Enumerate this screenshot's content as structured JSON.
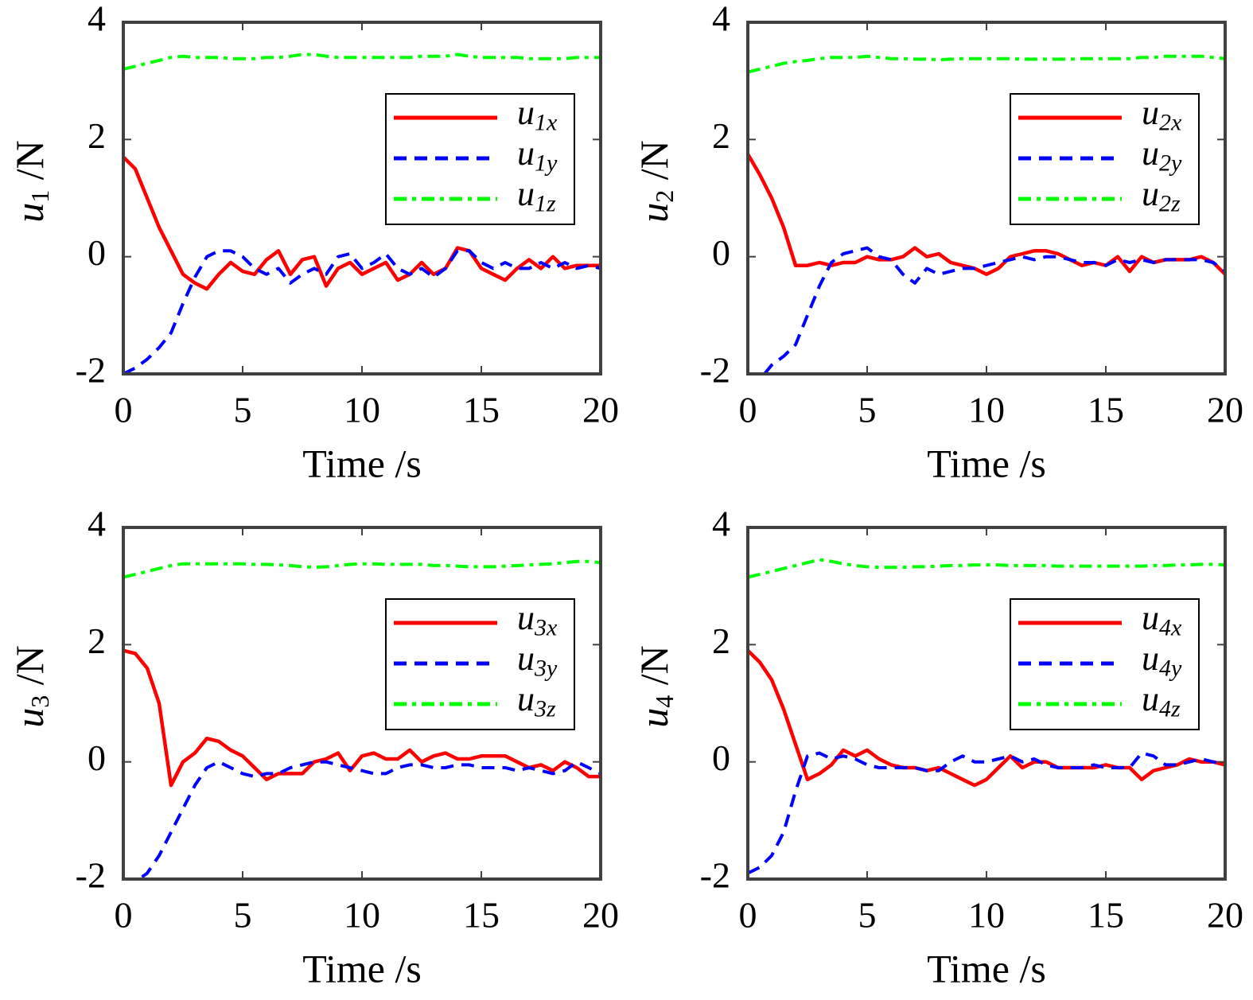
{
  "chart_data": [
    {
      "type": "line",
      "xlabel": "Time /s",
      "ylabel": "u1 /N",
      "x": [
        0,
        0.5,
        1,
        1.5,
        2,
        2.5,
        3,
        3.5,
        4,
        4.5,
        5,
        5.5,
        6,
        6.5,
        7,
        7.5,
        8,
        8.5,
        9,
        9.5,
        10,
        10.5,
        11,
        11.5,
        12,
        12.5,
        13,
        13.5,
        14,
        14.5,
        15,
        15.5,
        16,
        16.5,
        17,
        17.5,
        18,
        18.5,
        19,
        19.5,
        20
      ],
      "series": [
        {
          "name": "u1x",
          "color": "#ff0000",
          "style": "solid",
          "values": [
            1.7,
            1.5,
            1.0,
            0.5,
            0.1,
            -0.3,
            -0.45,
            -0.55,
            -0.3,
            -0.1,
            -0.25,
            -0.3,
            -0.05,
            0.1,
            -0.3,
            -0.05,
            0.0,
            -0.5,
            -0.2,
            -0.1,
            -0.3,
            -0.2,
            -0.1,
            -0.4,
            -0.3,
            -0.1,
            -0.3,
            -0.2,
            0.15,
            0.1,
            -0.2,
            -0.3,
            -0.4,
            -0.2,
            -0.05,
            -0.2,
            0.0,
            -0.2,
            -0.15,
            -0.15,
            -0.15
          ]
        },
        {
          "name": "u1y",
          "color": "#0000ff",
          "style": "dashed",
          "values": [
            -2.0,
            -1.9,
            -1.75,
            -1.55,
            -1.3,
            -0.8,
            -0.35,
            0.0,
            0.1,
            0.1,
            0.0,
            -0.2,
            -0.3,
            -0.2,
            -0.45,
            -0.3,
            -0.2,
            -0.3,
            0.0,
            0.05,
            -0.2,
            -0.1,
            0.05,
            -0.2,
            -0.3,
            -0.2,
            -0.35,
            -0.2,
            0.1,
            0.1,
            -0.1,
            -0.2,
            -0.1,
            -0.2,
            -0.2,
            -0.1,
            -0.2,
            -0.1,
            -0.2,
            -0.15,
            -0.2
          ]
        },
        {
          "name": "u1z",
          "color": "#00ff00",
          "style": "dashdot",
          "values": [
            3.2,
            3.25,
            3.3,
            3.35,
            3.4,
            3.42,
            3.4,
            3.4,
            3.4,
            3.38,
            3.38,
            3.38,
            3.4,
            3.4,
            3.42,
            3.45,
            3.45,
            3.42,
            3.4,
            3.4,
            3.4,
            3.4,
            3.4,
            3.4,
            3.4,
            3.42,
            3.42,
            3.42,
            3.45,
            3.42,
            3.4,
            3.4,
            3.4,
            3.4,
            3.38,
            3.38,
            3.38,
            3.38,
            3.4,
            3.4,
            3.4
          ]
        }
      ],
      "xlim": [
        0,
        20
      ],
      "xticks": [
        0,
        5,
        10,
        15,
        20
      ],
      "ylim": [
        -2,
        4
      ],
      "yticks": [
        -2,
        0,
        2,
        4
      ],
      "legend": "upper right"
    },
    {
      "type": "line",
      "xlabel": "Time /s",
      "ylabel": "u2 /N",
      "x": [
        0,
        0.5,
        1,
        1.5,
        2,
        2.5,
        3,
        3.5,
        4,
        4.5,
        5,
        5.5,
        6,
        6.5,
        7,
        7.5,
        8,
        8.5,
        9,
        9.5,
        10,
        10.5,
        11,
        11.5,
        12,
        12.5,
        13,
        13.5,
        14,
        14.5,
        15,
        15.5,
        16,
        16.5,
        17,
        17.5,
        18,
        18.5,
        19,
        19.5,
        20
      ],
      "series": [
        {
          "name": "u2x",
          "color": "#ff0000",
          "style": "solid",
          "values": [
            1.75,
            1.4,
            1.0,
            0.5,
            -0.15,
            -0.15,
            -0.1,
            -0.15,
            -0.1,
            -0.1,
            0.0,
            -0.05,
            -0.05,
            0.0,
            0.15,
            0.0,
            0.05,
            -0.1,
            -0.15,
            -0.2,
            -0.3,
            -0.2,
            0.0,
            0.05,
            0.1,
            0.1,
            0.05,
            -0.05,
            -0.15,
            -0.1,
            -0.15,
            0.0,
            -0.25,
            0.0,
            -0.1,
            -0.05,
            -0.05,
            -0.05,
            0.0,
            -0.1,
            -0.3
          ]
        },
        {
          "name": "u2y",
          "color": "#0000ff",
          "style": "dashed",
          "values": [
            -2.0,
            -2.1,
            -1.85,
            -1.7,
            -1.5,
            -1.0,
            -0.5,
            -0.1,
            0.05,
            0.1,
            0.15,
            0.0,
            -0.05,
            -0.3,
            -0.45,
            -0.2,
            -0.3,
            -0.25,
            -0.2,
            -0.2,
            -0.15,
            -0.1,
            -0.05,
            0.0,
            -0.05,
            0.0,
            0.0,
            -0.05,
            -0.1,
            -0.1,
            -0.15,
            -0.05,
            -0.1,
            -0.05,
            -0.1,
            -0.05,
            -0.05,
            -0.05,
            -0.05,
            -0.1,
            -0.25
          ]
        },
        {
          "name": "u2z",
          "color": "#00ff00",
          "style": "dashdot",
          "values": [
            3.15,
            3.2,
            3.25,
            3.3,
            3.33,
            3.35,
            3.38,
            3.4,
            3.4,
            3.4,
            3.42,
            3.4,
            3.38,
            3.38,
            3.37,
            3.37,
            3.36,
            3.37,
            3.38,
            3.38,
            3.38,
            3.38,
            3.38,
            3.37,
            3.37,
            3.37,
            3.37,
            3.37,
            3.38,
            3.38,
            3.38,
            3.38,
            3.38,
            3.4,
            3.4,
            3.42,
            3.42,
            3.42,
            3.42,
            3.4,
            3.38
          ]
        }
      ],
      "xlim": [
        0,
        20
      ],
      "xticks": [
        0,
        5,
        10,
        15,
        20
      ],
      "ylim": [
        -2,
        4
      ],
      "yticks": [
        -2,
        0,
        2,
        4
      ],
      "legend": "upper right"
    },
    {
      "type": "line",
      "xlabel": "Time /s",
      "ylabel": "u3 /N",
      "x": [
        0,
        0.5,
        1,
        1.5,
        2,
        2.5,
        3,
        3.5,
        4,
        4.5,
        5,
        5.5,
        6,
        6.5,
        7,
        7.5,
        8,
        8.5,
        9,
        9.5,
        10,
        10.5,
        11,
        11.5,
        12,
        12.5,
        13,
        13.5,
        14,
        14.5,
        15,
        15.5,
        16,
        16.5,
        17,
        17.5,
        18,
        18.5,
        19,
        19.5,
        20
      ],
      "series": [
        {
          "name": "u3x",
          "color": "#ff0000",
          "style": "solid",
          "values": [
            1.9,
            1.85,
            1.6,
            1.0,
            -0.4,
            0.0,
            0.15,
            0.4,
            0.35,
            0.2,
            0.1,
            -0.1,
            -0.3,
            -0.2,
            -0.2,
            -0.2,
            0.0,
            0.05,
            0.15,
            -0.15,
            0.1,
            0.15,
            0.05,
            0.05,
            0.2,
            0.0,
            0.1,
            0.15,
            0.05,
            0.05,
            0.1,
            0.1,
            0.1,
            0.0,
            -0.1,
            -0.05,
            -0.15,
            0.0,
            -0.1,
            -0.25,
            -0.25
          ]
        },
        {
          "name": "u3y",
          "color": "#0000ff",
          "style": "dashed",
          "values": [
            -2.0,
            -2.05,
            -1.9,
            -1.6,
            -1.2,
            -0.8,
            -0.4,
            -0.1,
            0.0,
            -0.1,
            -0.2,
            -0.25,
            -0.2,
            -0.2,
            -0.1,
            -0.05,
            0.0,
            0.0,
            -0.05,
            -0.1,
            -0.15,
            -0.2,
            -0.2,
            -0.1,
            -0.05,
            -0.05,
            -0.1,
            -0.1,
            -0.05,
            -0.05,
            -0.1,
            -0.1,
            -0.1,
            -0.15,
            -0.1,
            -0.15,
            -0.2,
            -0.15,
            0.0,
            -0.1,
            -0.2
          ]
        },
        {
          "name": "u3z",
          "color": "#00ff00",
          "style": "dashdot",
          "values": [
            3.15,
            3.2,
            3.25,
            3.3,
            3.35,
            3.38,
            3.38,
            3.38,
            3.38,
            3.38,
            3.38,
            3.37,
            3.37,
            3.36,
            3.35,
            3.33,
            3.32,
            3.33,
            3.35,
            3.37,
            3.38,
            3.38,
            3.37,
            3.37,
            3.37,
            3.37,
            3.35,
            3.35,
            3.34,
            3.33,
            3.33,
            3.33,
            3.34,
            3.35,
            3.36,
            3.37,
            3.38,
            3.4,
            3.42,
            3.42,
            3.4
          ]
        }
      ],
      "xlim": [
        0,
        20
      ],
      "xticks": [
        0,
        5,
        10,
        15,
        20
      ],
      "ylim": [
        -2,
        4
      ],
      "yticks": [
        -2,
        0,
        2,
        4
      ],
      "legend": "upper right"
    },
    {
      "type": "line",
      "xlabel": "Time /s",
      "ylabel": "u4 /N",
      "x": [
        0,
        0.5,
        1,
        1.5,
        2,
        2.5,
        3,
        3.5,
        4,
        4.5,
        5,
        5.5,
        6,
        6.5,
        7,
        7.5,
        8,
        8.5,
        9,
        9.5,
        10,
        10.5,
        11,
        11.5,
        12,
        12.5,
        13,
        13.5,
        14,
        14.5,
        15,
        15.5,
        16,
        16.5,
        17,
        17.5,
        18,
        18.5,
        19,
        19.5,
        20
      ],
      "series": [
        {
          "name": "u4x",
          "color": "#ff0000",
          "style": "solid",
          "values": [
            1.9,
            1.7,
            1.4,
            0.9,
            0.3,
            -0.3,
            -0.2,
            -0.05,
            0.2,
            0.1,
            0.2,
            0.05,
            -0.05,
            -0.1,
            -0.1,
            -0.15,
            -0.1,
            -0.2,
            -0.3,
            -0.4,
            -0.3,
            -0.1,
            0.1,
            -0.1,
            0.0,
            0.0,
            -0.1,
            -0.1,
            -0.1,
            -0.1,
            -0.05,
            -0.1,
            -0.1,
            -0.3,
            -0.15,
            -0.1,
            -0.05,
            0.05,
            0.0,
            0.0,
            -0.05
          ]
        },
        {
          "name": "u4y",
          "color": "#0000ff",
          "style": "dashed",
          "values": [
            -1.9,
            -1.8,
            -1.6,
            -1.2,
            -0.5,
            0.1,
            0.15,
            0.05,
            0.1,
            0.05,
            -0.05,
            -0.1,
            -0.1,
            -0.1,
            -0.1,
            -0.15,
            -0.15,
            0.0,
            0.1,
            0.0,
            0.0,
            0.05,
            0.1,
            0.0,
            0.05,
            -0.05,
            -0.1,
            -0.1,
            -0.1,
            -0.05,
            -0.1,
            -0.1,
            -0.1,
            0.15,
            0.1,
            -0.05,
            -0.05,
            0.0,
            0.05,
            0.0,
            -0.05
          ]
        },
        {
          "name": "u4z",
          "color": "#00ff00",
          "style": "dashdot",
          "values": [
            3.15,
            3.2,
            3.25,
            3.3,
            3.35,
            3.4,
            3.45,
            3.42,
            3.38,
            3.35,
            3.33,
            3.32,
            3.32,
            3.32,
            3.33,
            3.33,
            3.34,
            3.35,
            3.35,
            3.36,
            3.36,
            3.36,
            3.35,
            3.35,
            3.35,
            3.35,
            3.34,
            3.34,
            3.34,
            3.34,
            3.34,
            3.34,
            3.34,
            3.34,
            3.35,
            3.35,
            3.36,
            3.36,
            3.37,
            3.37,
            3.36
          ]
        }
      ],
      "xlim": [
        0,
        20
      ],
      "xticks": [
        0,
        5,
        10,
        15,
        20
      ],
      "ylim": [
        -2,
        4
      ],
      "yticks": [
        -2,
        0,
        2,
        4
      ],
      "legend": "upper right"
    }
  ]
}
